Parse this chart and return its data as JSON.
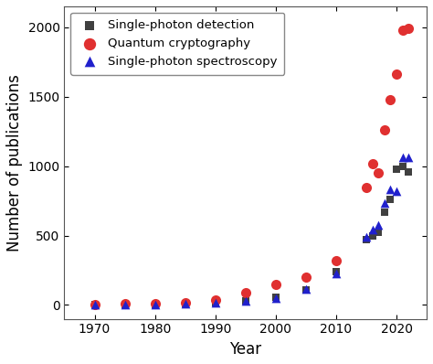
{
  "title": "",
  "xlabel": "Year",
  "ylabel": "Number of publications",
  "xlim": [
    1965,
    2025
  ],
  "ylim": [
    -100,
    2150
  ],
  "yticks": [
    0,
    500,
    1000,
    1500,
    2000
  ],
  "xticks": [
    1970,
    1980,
    1990,
    2000,
    2010,
    2020
  ],
  "single_photon_detection": {
    "x": [
      1970,
      1975,
      1980,
      1985,
      1990,
      1995,
      2000,
      2005,
      2010,
      2015,
      2016,
      2017,
      2018,
      2019,
      2020,
      2021,
      2022
    ],
    "y": [
      2,
      3,
      5,
      8,
      18,
      28,
      55,
      110,
      240,
      470,
      500,
      525,
      665,
      760,
      980,
      1000,
      960
    ],
    "color": "#404040",
    "marker": "s",
    "label": "Single-photon detection",
    "markersize": 6
  },
  "quantum_cryptography": {
    "x": [
      1970,
      1975,
      1980,
      1985,
      1990,
      1995,
      2000,
      2005,
      2010,
      2015,
      2016,
      2017,
      2018,
      2019,
      2020,
      2021,
      2022
    ],
    "y": [
      3,
      8,
      12,
      15,
      35,
      90,
      145,
      200,
      320,
      845,
      1020,
      950,
      1260,
      1475,
      1660,
      1980,
      1990
    ],
    "color": "#e03030",
    "marker": "o",
    "label": "Quantum cryptography",
    "markersize": 8
  },
  "single_photon_spectroscopy": {
    "x": [
      1970,
      1975,
      1980,
      1985,
      1990,
      1995,
      2000,
      2005,
      2010,
      2015,
      2016,
      2017,
      2018,
      2019,
      2020,
      2021,
      2022
    ],
    "y": [
      2,
      5,
      5,
      8,
      18,
      28,
      48,
      112,
      225,
      490,
      545,
      575,
      735,
      835,
      820,
      1060,
      1060
    ],
    "color": "#2020cc",
    "marker": "^",
    "label": "Single-photon spectroscopy",
    "markersize": 7
  },
  "background_color": "#ffffff",
  "legend_fontsize": 9.5,
  "axis_fontsize": 12,
  "tick_fontsize": 10
}
